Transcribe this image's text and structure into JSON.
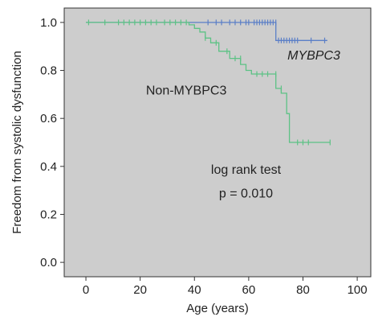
{
  "chart_data": {
    "type": "line",
    "step": true,
    "xlabel": "Age (years)",
    "ylabel": "Freedom from systolic dysfunction",
    "xlim": [
      -8,
      105
    ],
    "ylim": [
      -0.06,
      1.06
    ],
    "xticks": [
      0,
      20,
      40,
      60,
      80,
      100
    ],
    "yticks": [
      0.0,
      0.2,
      0.4,
      0.6,
      0.8,
      1.0
    ],
    "xtick_labels": [
      "0",
      "20",
      "40",
      "60",
      "80",
      "100"
    ],
    "ytick_labels": [
      "0.0",
      "0.2",
      "0.4",
      "0.6",
      "0.8",
      "1.0"
    ],
    "plot_background": "#cdcdcd",
    "series": [
      {
        "name": "MYBPC3",
        "italic": true,
        "color": "#5b7fc7",
        "x": [
          0,
          70,
          70,
          89
        ],
        "y": [
          1.0,
          1.0,
          0.925,
          0.925
        ],
        "censor_x": [
          45,
          48,
          50,
          53,
          55,
          57,
          59,
          60,
          62,
          63,
          64,
          65,
          66,
          67,
          68,
          69,
          70,
          71,
          72,
          73,
          74,
          75,
          76,
          77,
          78,
          83,
          88
        ],
        "censor_y": [
          1.0,
          1.0,
          1.0,
          1.0,
          1.0,
          1.0,
          1.0,
          1.0,
          1.0,
          1.0,
          1.0,
          1.0,
          1.0,
          1.0,
          1.0,
          1.0,
          1.0,
          0.925,
          0.925,
          0.925,
          0.925,
          0.925,
          0.925,
          0.925,
          0.925,
          0.925,
          0.925
        ]
      },
      {
        "name": "Non-MYBPC3",
        "italic": false,
        "color": "#5dc285",
        "x": [
          0,
          38,
          38,
          40,
          40,
          42,
          42,
          44,
          44,
          46,
          46,
          49,
          49,
          53,
          53,
          57,
          57,
          59,
          59,
          61,
          61,
          70,
          70,
          72,
          72,
          74,
          74,
          75,
          75,
          90
        ],
        "y": [
          1.0,
          1.0,
          0.99,
          0.99,
          0.975,
          0.975,
          0.96,
          0.96,
          0.935,
          0.935,
          0.915,
          0.915,
          0.88,
          0.88,
          0.85,
          0.85,
          0.825,
          0.825,
          0.8,
          0.8,
          0.785,
          0.785,
          0.725,
          0.725,
          0.705,
          0.705,
          0.62,
          0.62,
          0.5,
          0.5
        ],
        "censor_x": [
          1,
          7,
          12,
          14,
          16,
          18,
          20,
          22,
          24,
          26,
          29,
          31,
          33,
          35,
          37,
          44,
          48,
          52,
          55,
          57,
          63,
          65,
          67,
          70,
          72,
          78,
          80,
          82,
          90
        ],
        "censor_y": [
          1.0,
          1.0,
          1.0,
          1.0,
          1.0,
          1.0,
          1.0,
          1.0,
          1.0,
          1.0,
          1.0,
          1.0,
          1.0,
          1.0,
          1.0,
          0.935,
          0.915,
          0.88,
          0.85,
          0.85,
          0.785,
          0.785,
          0.785,
          0.785,
          0.725,
          0.5,
          0.5,
          0.5,
          0.5
        ]
      }
    ],
    "annotations": [
      {
        "text": "MYBPC3",
        "x": 84,
        "y": 0.845,
        "italic": true
      },
      {
        "text": "Non-MYBPC3",
        "x": 37,
        "y": 0.7,
        "italic": false
      },
      {
        "text": "log rank test",
        "x": 59,
        "y": 0.37,
        "italic": false
      },
      {
        "text": "p = 0.010",
        "x": 59,
        "y": 0.27,
        "italic": false
      }
    ]
  }
}
